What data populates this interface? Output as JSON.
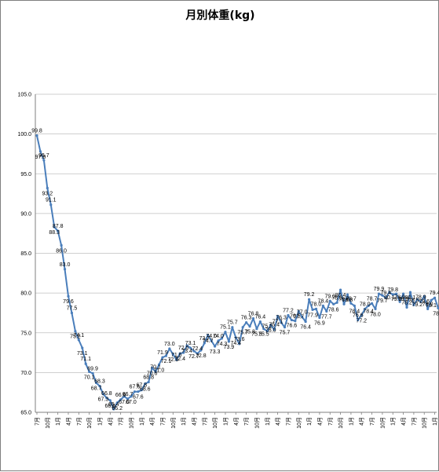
{
  "chart_data": {
    "type": "line",
    "title": "月別体重(kg)",
    "xlabel": "",
    "ylabel": "",
    "ylim": [
      65.0,
      105.0
    ],
    "y_ticks": [
      "65.0",
      "70.0",
      "75.0",
      "80.0",
      "85.0",
      "90.0",
      "95.0",
      "100.0",
      "105.0"
    ],
    "grid": "horizontal",
    "legend": "none",
    "line_color": "#4a7ebb",
    "x_labels": [
      "7月",
      "10月",
      "1月",
      "4月",
      "7月",
      "10月",
      "1月",
      "4月",
      "7月",
      "10月",
      "1月",
      "4月",
      "7月",
      "10月",
      "1月",
      "4月",
      "7月",
      "10月",
      "1月",
      "4月",
      "7月",
      "10月",
      "1月",
      "4月",
      "7月",
      "10月",
      "1月",
      "4月",
      "7月",
      "10月",
      "1月",
      "4月",
      "7月",
      "10月",
      "1月",
      "4月",
      "7月",
      "10月",
      "1月",
      "4月",
      "7月",
      "10月",
      "1月",
      "4月",
      "7月"
    ],
    "x_label_step": 3,
    "values": [
      99.8,
      97.8,
      96.7,
      93.2,
      91.1,
      88.3,
      87.8,
      86.0,
      83.0,
      79.6,
      77.5,
      75.2,
      74.1,
      73.1,
      71.1,
      70.1,
      69.9,
      68.7,
      68.3,
      67.3,
      66.8,
      66.5,
      65.4,
      66.2,
      66.6,
      67.0,
      66.7,
      67.0,
      67.6,
      67.6,
      67.8,
      68.6,
      68.8,
      70.6,
      70.1,
      71.0,
      71.9,
      72.1,
      73.0,
      72.3,
      71.6,
      72.4,
      72.5,
      73.4,
      73.1,
      72.7,
      72.4,
      72.8,
      73.7,
      74.7,
      74.0,
      73.3,
      74.0,
      74.3,
      75.1,
      73.9,
      75.7,
      74.4,
      73.6,
      75.7,
      76.3,
      75.8,
      76.8,
      75.5,
      76.4,
      75.5,
      75.2,
      76.0,
      75.4,
      77.1,
      76.3,
      75.7,
      77.2,
      76.6,
      76.5,
      77.7,
      77.0,
      76.4,
      79.2,
      77.9,
      78.0,
      76.9,
      78.4,
      77.7,
      79.0,
      78.6,
      78.8,
      80.4,
      78.6,
      79.8,
      78.7,
      78.4,
      76.6,
      77.2,
      78.0,
      78.4,
      78.7,
      78.0,
      79.9,
      79.7,
      79.4,
      80.1,
      79.8,
      79.9,
      78.9,
      79.9,
      78.2,
      80.1,
      78.5,
      79.2,
      78.9,
      79.6,
      78.0,
      79.1,
      79.4,
      78.1
    ]
  }
}
